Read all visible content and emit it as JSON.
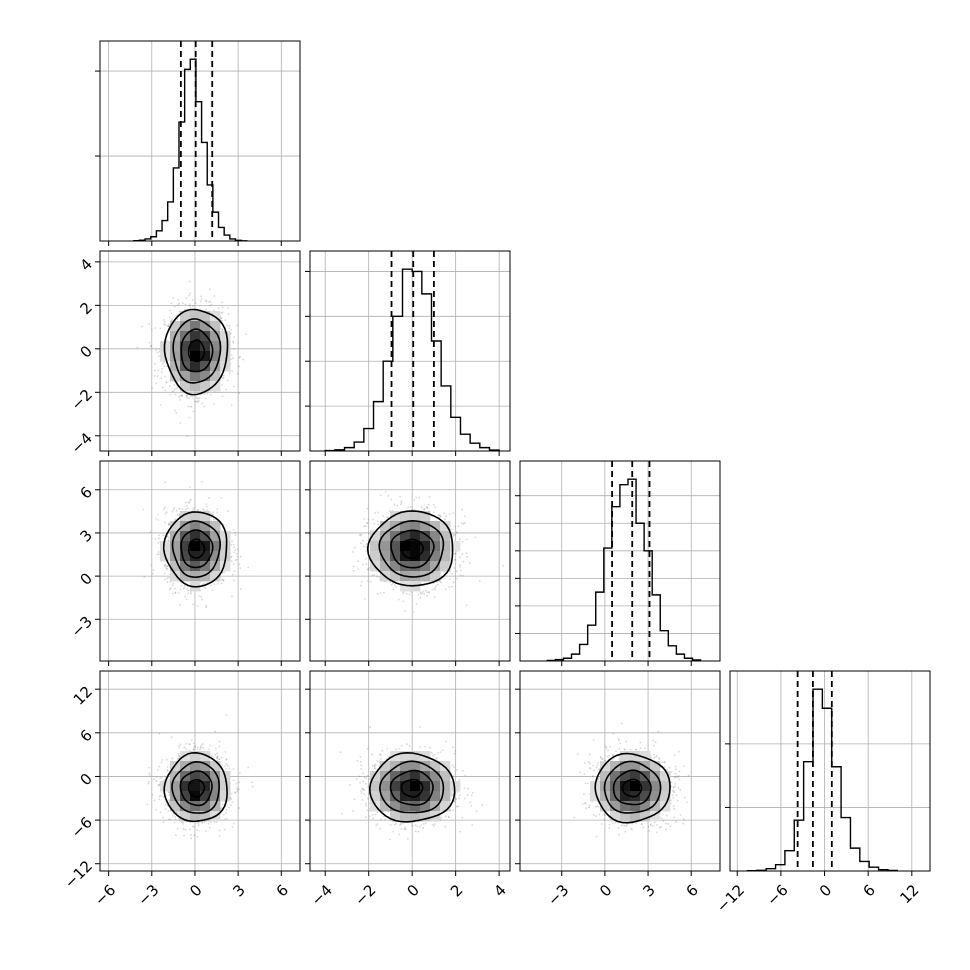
{
  "chart_data": {
    "type": "corner",
    "grid": true,
    "dimensions": [
      {
        "id": "p1",
        "range": [
          -6.6,
          7.3
        ],
        "ticks": [
          -6,
          -3,
          0,
          3,
          6
        ],
        "tick_labels": [
          "−6",
          "−3",
          "0",
          "3",
          "6"
        ],
        "quantiles": [
          -0.98,
          0.05,
          1.2
        ],
        "hist_bins": [
          -4.25,
          3.6
        ],
        "hist_counts": [
          2,
          5,
          12,
          25,
          60,
          120,
          230,
          430,
          700,
          1010,
          1070,
          820,
          580,
          330,
          170,
          80,
          35,
          12,
          4,
          1
        ],
        "hist_ticks": [
          500,
          1000
        ]
      },
      {
        "id": "p2",
        "range": [
          -4.7,
          4.5
        ],
        "ticks": [
          -4,
          -2,
          0,
          2,
          4
        ],
        "tick_labels": [
          "−4",
          "−2",
          "0",
          "2",
          "4"
        ],
        "quantiles": [
          -0.95,
          0.05,
          1.0
        ],
        "hist_bins": [
          -4.0,
          4.0
        ],
        "hist_counts": [
          2,
          5,
          15,
          40,
          100,
          220,
          400,
          600,
          810,
          800,
          700,
          490,
          290,
          150,
          75,
          35,
          15,
          4
        ],
        "hist_ticks": [
          200,
          400,
          600,
          800
        ]
      },
      {
        "id": "p3",
        "range": [
          -5.9,
          8.0
        ],
        "ticks": [
          -3,
          0,
          3,
          6
        ],
        "tick_labels": [
          "−3",
          "0",
          "3",
          "6"
        ],
        "quantiles": [
          0.5,
          1.9,
          3.1
        ],
        "hist_bins": [
          -4.0,
          6.65
        ],
        "hist_counts": [
          2,
          5,
          10,
          25,
          60,
          130,
          250,
          410,
          560,
          640,
          660,
          500,
          400,
          240,
          110,
          55,
          25,
          10,
          4
        ],
        "hist_ticks": [
          100,
          200,
          300,
          400,
          500,
          600
        ]
      },
      {
        "id": "p4",
        "range": [
          -13.0,
          14.5
        ],
        "ticks": [
          -12,
          -6,
          0,
          6,
          12
        ],
        "tick_labels": [
          "−12",
          "−6",
          "0",
          "6",
          "12"
        ],
        "quantiles": [
          -3.7,
          -1.6,
          1.0
        ],
        "hist_bins": [
          -10.6,
          10.0
        ],
        "hist_counts": [
          2,
          5,
          18,
          50,
          160,
          400,
          860,
          1430,
          1280,
          820,
          420,
          180,
          75,
          30,
          10,
          4
        ],
        "hist_ticks": [
          500,
          1000
        ]
      }
    ],
    "pairs": [
      {
        "x": "p1",
        "y": "p2",
        "center": [
          0.1,
          -0.1
        ]
      },
      {
        "x": "p1",
        "y": "p3",
        "center": [
          0.1,
          1.9
        ]
      },
      {
        "x": "p2",
        "y": "p3",
        "center": [
          0.0,
          1.9
        ]
      },
      {
        "x": "p1",
        "y": "p4",
        "center": [
          0.1,
          -1.6
        ]
      },
      {
        "x": "p2",
        "y": "p4",
        "center": [
          0.0,
          -1.6
        ]
      },
      {
        "x": "p3",
        "y": "p4",
        "center": [
          1.9,
          -1.6
        ]
      }
    ],
    "contour_levels_sigma": [
      0.5,
      1.0,
      1.5,
      2.0
    ],
    "colors": {
      "points": "#7f7f7f",
      "line": "#000000",
      "grid": "#b0b0b0"
    }
  }
}
